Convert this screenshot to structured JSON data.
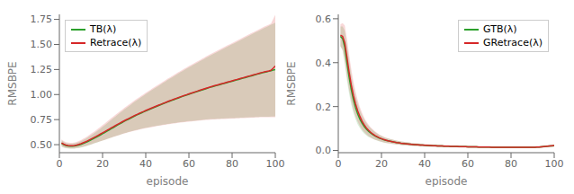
{
  "chart_data": [
    {
      "type": "line",
      "x_label": "episode",
      "y_label": "RMSBPE",
      "xlim": [
        0,
        100
      ],
      "xticks": [
        0,
        20,
        40,
        60,
        80,
        100
      ],
      "ylim": [
        0.42,
        1.8
      ],
      "yticks": [
        {
          "value": 0.5,
          "label": "0.50"
        },
        0.75,
        {
          "value": 1,
          "label": "1.00"
        },
        1.25,
        {
          "value": 1.5,
          "label": "1.50"
        },
        1.75
      ],
      "legend": "upper left",
      "x": [
        1,
        2,
        3,
        4,
        5,
        6,
        7,
        8,
        9,
        10,
        11,
        12,
        13,
        14,
        15,
        16,
        17,
        18,
        19,
        20,
        21,
        22,
        23,
        24,
        25,
        26,
        27,
        28,
        29,
        30,
        31,
        32,
        33,
        34,
        35,
        36,
        37,
        38,
        39,
        40,
        41,
        42,
        43,
        44,
        45,
        46,
        47,
        48,
        49,
        50,
        51,
        52,
        53,
        54,
        55,
        56,
        57,
        58,
        59,
        60,
        61,
        62,
        63,
        64,
        65,
        66,
        67,
        68,
        69,
        70,
        71,
        72,
        73,
        74,
        75,
        76,
        77,
        78,
        79,
        80,
        81,
        82,
        83,
        84,
        85,
        86,
        87,
        88,
        89,
        90,
        91,
        92,
        93,
        94,
        95,
        96,
        97,
        98,
        99,
        100
      ],
      "series": [
        {
          "name": "TB(λ)",
          "color": "#2ca02c",
          "values": [
            0.513,
            0.5,
            0.491,
            0.487,
            0.485,
            0.485,
            0.487,
            0.491,
            0.496,
            0.503,
            0.511,
            0.52,
            0.53,
            0.54,
            0.551,
            0.562,
            0.573,
            0.585,
            0.597,
            0.609,
            0.621,
            0.634,
            0.646,
            0.659,
            0.671,
            0.683,
            0.696,
            0.708,
            0.72,
            0.732,
            0.743,
            0.754,
            0.765,
            0.776,
            0.787,
            0.797,
            0.807,
            0.817,
            0.827,
            0.836,
            0.845,
            0.855,
            0.864,
            0.873,
            0.882,
            0.89,
            0.899,
            0.908,
            0.916,
            0.925,
            0.933,
            0.941,
            0.949,
            0.957,
            0.965,
            0.973,
            0.981,
            0.988,
            0.996,
            1.003,
            1.01,
            1.017,
            1.024,
            1.031,
            1.038,
            1.045,
            1.052,
            1.059,
            1.066,
            1.073,
            1.079,
            1.085,
            1.091,
            1.097,
            1.103,
            1.109,
            1.115,
            1.121,
            1.127,
            1.133,
            1.139,
            1.145,
            1.151,
            1.157,
            1.163,
            1.169,
            1.175,
            1.181,
            1.187,
            1.193,
            1.199,
            1.205,
            1.211,
            1.217,
            1.222,
            1.227,
            1.232,
            1.238,
            1.244,
            1.25
          ],
          "std": [
            0.03,
            0.028,
            0.026,
            0.025,
            0.025,
            0.025,
            0.026,
            0.027,
            0.029,
            0.031,
            0.034,
            0.037,
            0.04,
            0.043,
            0.047,
            0.051,
            0.055,
            0.059,
            0.063,
            0.068,
            0.073,
            0.078,
            0.083,
            0.088,
            0.093,
            0.098,
            0.103,
            0.108,
            0.113,
            0.118,
            0.123,
            0.128,
            0.133,
            0.138,
            0.143,
            0.148,
            0.153,
            0.158,
            0.163,
            0.168,
            0.173,
            0.178,
            0.183,
            0.188,
            0.193,
            0.198,
            0.203,
            0.208,
            0.213,
            0.218,
            0.223,
            0.228,
            0.233,
            0.238,
            0.243,
            0.248,
            0.253,
            0.258,
            0.263,
            0.268,
            0.273,
            0.278,
            0.283,
            0.288,
            0.293,
            0.298,
            0.303,
            0.308,
            0.313,
            0.318,
            0.323,
            0.328,
            0.333,
            0.338,
            0.343,
            0.348,
            0.353,
            0.358,
            0.363,
            0.368,
            0.373,
            0.378,
            0.383,
            0.388,
            0.393,
            0.398,
            0.403,
            0.408,
            0.413,
            0.418,
            0.423,
            0.428,
            0.433,
            0.438,
            0.443,
            0.448,
            0.453,
            0.458,
            0.463,
            0.468
          ]
        },
        {
          "name": "Retrace(λ)",
          "color": "#d62728",
          "values": [
            0.518,
            0.505,
            0.496,
            0.492,
            0.49,
            0.49,
            0.492,
            0.497,
            0.503,
            0.51,
            0.519,
            0.528,
            0.538,
            0.549,
            0.56,
            0.571,
            0.582,
            0.594,
            0.606,
            0.618,
            0.63,
            0.642,
            0.655,
            0.667,
            0.679,
            0.691,
            0.703,
            0.715,
            0.727,
            0.738,
            0.749,
            0.76,
            0.771,
            0.782,
            0.792,
            0.802,
            0.812,
            0.822,
            0.831,
            0.841,
            0.85,
            0.859,
            0.868,
            0.877,
            0.886,
            0.895,
            0.903,
            0.912,
            0.92,
            0.929,
            0.937,
            0.945,
            0.953,
            0.961,
            0.969,
            0.977,
            0.984,
            0.992,
            0.999,
            1.007,
            1.014,
            1.021,
            1.028,
            1.035,
            1.042,
            1.049,
            1.056,
            1.063,
            1.07,
            1.077,
            1.083,
            1.089,
            1.095,
            1.101,
            1.107,
            1.113,
            1.119,
            1.125,
            1.131,
            1.137,
            1.143,
            1.149,
            1.155,
            1.161,
            1.167,
            1.173,
            1.179,
            1.185,
            1.191,
            1.197,
            1.203,
            1.209,
            1.215,
            1.221,
            1.226,
            1.231,
            1.236,
            1.242,
            1.263,
            1.285
          ],
          "std": [
            0.035,
            0.032,
            0.03,
            0.028,
            0.028,
            0.028,
            0.029,
            0.031,
            0.033,
            0.036,
            0.039,
            0.042,
            0.046,
            0.05,
            0.054,
            0.058,
            0.062,
            0.067,
            0.072,
            0.077,
            0.082,
            0.087,
            0.092,
            0.097,
            0.102,
            0.107,
            0.112,
            0.117,
            0.122,
            0.127,
            0.132,
            0.137,
            0.142,
            0.147,
            0.152,
            0.157,
            0.162,
            0.167,
            0.172,
            0.177,
            0.182,
            0.187,
            0.192,
            0.197,
            0.202,
            0.207,
            0.212,
            0.217,
            0.222,
            0.227,
            0.232,
            0.237,
            0.242,
            0.247,
            0.252,
            0.257,
            0.262,
            0.267,
            0.272,
            0.277,
            0.282,
            0.287,
            0.292,
            0.297,
            0.302,
            0.307,
            0.312,
            0.317,
            0.322,
            0.327,
            0.332,
            0.337,
            0.342,
            0.347,
            0.352,
            0.357,
            0.362,
            0.367,
            0.372,
            0.377,
            0.382,
            0.387,
            0.392,
            0.397,
            0.402,
            0.407,
            0.412,
            0.417,
            0.422,
            0.427,
            0.432,
            0.437,
            0.442,
            0.447,
            0.452,
            0.457,
            0.462,
            0.467,
            0.49,
            0.51
          ]
        }
      ]
    },
    {
      "type": "line",
      "x_label": "episode",
      "y_label": "RMSBPE",
      "xlim": [
        0,
        100
      ],
      "xticks": [
        0,
        20,
        40,
        60,
        80,
        100
      ],
      "ylim": [
        -0.01,
        0.62
      ],
      "yticks": [
        {
          "value": 0,
          "label": "0.0"
        },
        0.2,
        0.4,
        0.6
      ],
      "legend": "upper right",
      "x": [
        1,
        2,
        3,
        4,
        5,
        6,
        7,
        8,
        9,
        10,
        11,
        12,
        13,
        14,
        15,
        16,
        17,
        18,
        19,
        20,
        21,
        22,
        23,
        24,
        25,
        26,
        27,
        28,
        29,
        30,
        31,
        32,
        33,
        34,
        35,
        36,
        37,
        38,
        39,
        40,
        41,
        42,
        43,
        44,
        45,
        46,
        47,
        48,
        49,
        50,
        51,
        52,
        53,
        54,
        55,
        56,
        57,
        58,
        59,
        60,
        61,
        62,
        63,
        64,
        65,
        66,
        67,
        68,
        69,
        70,
        71,
        72,
        73,
        74,
        75,
        76,
        77,
        78,
        79,
        80,
        81,
        82,
        83,
        84,
        85,
        86,
        87,
        88,
        89,
        90,
        91,
        92,
        93,
        94,
        95,
        96,
        97,
        98,
        99,
        100
      ],
      "series": [
        {
          "name": "GTB(λ)",
          "color": "#2ca02c",
          "values": [
            0.52,
            0.51,
            0.47,
            0.4,
            0.335,
            0.278,
            0.232,
            0.195,
            0.166,
            0.143,
            0.124,
            0.109,
            0.097,
            0.087,
            0.079,
            0.072,
            0.066,
            0.061,
            0.056,
            0.053,
            0.049,
            0.046,
            0.044,
            0.042,
            0.04,
            0.038,
            0.036,
            0.035,
            0.033,
            0.032,
            0.031,
            0.03,
            0.029,
            0.028,
            0.027,
            0.026,
            0.026,
            0.025,
            0.025,
            0.024,
            0.023,
            0.023,
            0.022,
            0.022,
            0.022,
            0.021,
            0.021,
            0.021,
            0.02,
            0.02,
            0.02,
            0.019,
            0.019,
            0.019,
            0.019,
            0.018,
            0.018,
            0.018,
            0.018,
            0.017,
            0.017,
            0.017,
            0.017,
            0.017,
            0.016,
            0.016,
            0.016,
            0.016,
            0.016,
            0.016,
            0.015,
            0.015,
            0.015,
            0.015,
            0.015,
            0.015,
            0.015,
            0.015,
            0.015,
            0.015,
            0.015,
            0.015,
            0.015,
            0.015,
            0.015,
            0.015,
            0.015,
            0.015,
            0.015,
            0.015,
            0.015,
            0.016,
            0.016,
            0.017,
            0.018,
            0.019,
            0.02,
            0.021,
            0.021,
            0.022
          ],
          "std": [
            0.045,
            0.055,
            0.075,
            0.08,
            0.075,
            0.068,
            0.06,
            0.053,
            0.047,
            0.041,
            0.036,
            0.032,
            0.028,
            0.025,
            0.022,
            0.02,
            0.018,
            0.016,
            0.015,
            0.014,
            0.013,
            0.012,
            0.011,
            0.01,
            0.01,
            0.009,
            0.009,
            0.008,
            0.008,
            0.008,
            0.007,
            0.007,
            0.007,
            0.006,
            0.006,
            0.006,
            0.006,
            0.006,
            0.005,
            0.005,
            0.005,
            0.005,
            0.005,
            0.005,
            0.005,
            0.005,
            0.005,
            0.005,
            0.005,
            0.004,
            0.004,
            0.004,
            0.004,
            0.004,
            0.004,
            0.004,
            0.004,
            0.004,
            0.004,
            0.004,
            0.004,
            0.004,
            0.004,
            0.004,
            0.004,
            0.004,
            0.004,
            0.004,
            0.004,
            0.004,
            0.004,
            0.004,
            0.004,
            0.004,
            0.004,
            0.004,
            0.004,
            0.004,
            0.004,
            0.004,
            0.004,
            0.004,
            0.004,
            0.004,
            0.004,
            0.004,
            0.004,
            0.004,
            0.004,
            0.004,
            0.004,
            0.004,
            0.004,
            0.004,
            0.004,
            0.004,
            0.004,
            0.004,
            0.004,
            0.004
          ]
        },
        {
          "name": "GRetrace(λ)",
          "color": "#d62728",
          "values": [
            0.525,
            0.52,
            0.49,
            0.425,
            0.358,
            0.299,
            0.251,
            0.212,
            0.18,
            0.155,
            0.134,
            0.117,
            0.103,
            0.092,
            0.083,
            0.075,
            0.068,
            0.063,
            0.058,
            0.054,
            0.05,
            0.047,
            0.044,
            0.042,
            0.04,
            0.038,
            0.036,
            0.035,
            0.033,
            0.032,
            0.031,
            0.03,
            0.029,
            0.028,
            0.027,
            0.027,
            0.026,
            0.025,
            0.025,
            0.024,
            0.024,
            0.023,
            0.023,
            0.022,
            0.022,
            0.021,
            0.021,
            0.021,
            0.02,
            0.02,
            0.02,
            0.019,
            0.019,
            0.019,
            0.019,
            0.018,
            0.018,
            0.018,
            0.018,
            0.017,
            0.017,
            0.017,
            0.017,
            0.017,
            0.016,
            0.016,
            0.016,
            0.016,
            0.016,
            0.016,
            0.015,
            0.015,
            0.015,
            0.015,
            0.015,
            0.015,
            0.015,
            0.015,
            0.015,
            0.015,
            0.015,
            0.015,
            0.015,
            0.015,
            0.015,
            0.015,
            0.015,
            0.015,
            0.015,
            0.015,
            0.015,
            0.016,
            0.016,
            0.017,
            0.018,
            0.019,
            0.02,
            0.021,
            0.022,
            0.023
          ],
          "std": [
            0.05,
            0.06,
            0.08,
            0.085,
            0.08,
            0.072,
            0.064,
            0.056,
            0.049,
            0.043,
            0.038,
            0.033,
            0.029,
            0.026,
            0.023,
            0.021,
            0.019,
            0.017,
            0.015,
            0.014,
            0.013,
            0.012,
            0.011,
            0.01,
            0.01,
            0.009,
            0.009,
            0.008,
            0.008,
            0.008,
            0.007,
            0.007,
            0.007,
            0.006,
            0.006,
            0.006,
            0.006,
            0.006,
            0.005,
            0.005,
            0.005,
            0.005,
            0.005,
            0.005,
            0.005,
            0.005,
            0.005,
            0.005,
            0.005,
            0.004,
            0.004,
            0.004,
            0.004,
            0.004,
            0.004,
            0.004,
            0.004,
            0.004,
            0.004,
            0.004,
            0.004,
            0.004,
            0.004,
            0.004,
            0.004,
            0.004,
            0.004,
            0.004,
            0.004,
            0.004,
            0.004,
            0.004,
            0.004,
            0.004,
            0.004,
            0.004,
            0.004,
            0.004,
            0.004,
            0.004,
            0.004,
            0.004,
            0.004,
            0.004,
            0.004,
            0.004,
            0.004,
            0.004,
            0.004,
            0.004,
            0.004,
            0.004,
            0.004,
            0.004,
            0.004,
            0.004,
            0.004,
            0.004,
            0.004,
            0.004
          ]
        }
      ]
    }
  ]
}
